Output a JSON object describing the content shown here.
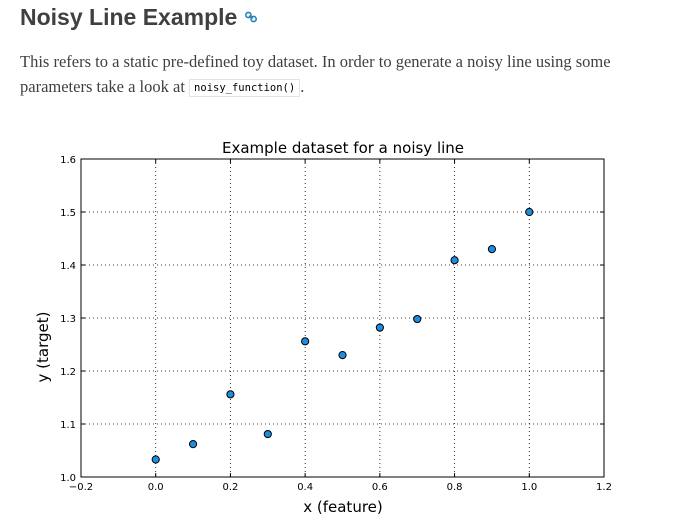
{
  "section": {
    "title": "Noisy Line Example",
    "link_icon": "link-icon"
  },
  "paragraph": {
    "text_before": "This refers to a static pre-defined toy dataset. In order to generate a noisy line using some parameters take a look at ",
    "code": "noisy_function()",
    "text_after": "."
  },
  "colors": {
    "point_fill": "#1c8ee0",
    "point_stroke": "#000000",
    "link": "#2980b9"
  },
  "chart_data": {
    "type": "scatter",
    "title": "Example dataset for a noisy line",
    "xlabel": "x (feature)",
    "ylabel": "y (target)",
    "xlim": [
      -0.2,
      1.2
    ],
    "ylim": [
      1.0,
      1.6
    ],
    "xticks": [
      "−0.2",
      "0.0",
      "0.2",
      "0.4",
      "0.6",
      "0.8",
      "1.0",
      "1.2"
    ],
    "yticks": [
      "1.0",
      "1.1",
      "1.2",
      "1.3",
      "1.4",
      "1.5",
      "1.6"
    ],
    "grid": true,
    "grid_style": "dotted",
    "x": [
      0.0,
      0.1,
      0.2,
      0.3,
      0.4,
      0.5,
      0.6,
      0.7,
      0.8,
      0.9,
      1.0
    ],
    "y": [
      1.033,
      1.062,
      1.156,
      1.081,
      1.256,
      1.23,
      1.282,
      1.298,
      1.409,
      1.43,
      1.5
    ]
  }
}
